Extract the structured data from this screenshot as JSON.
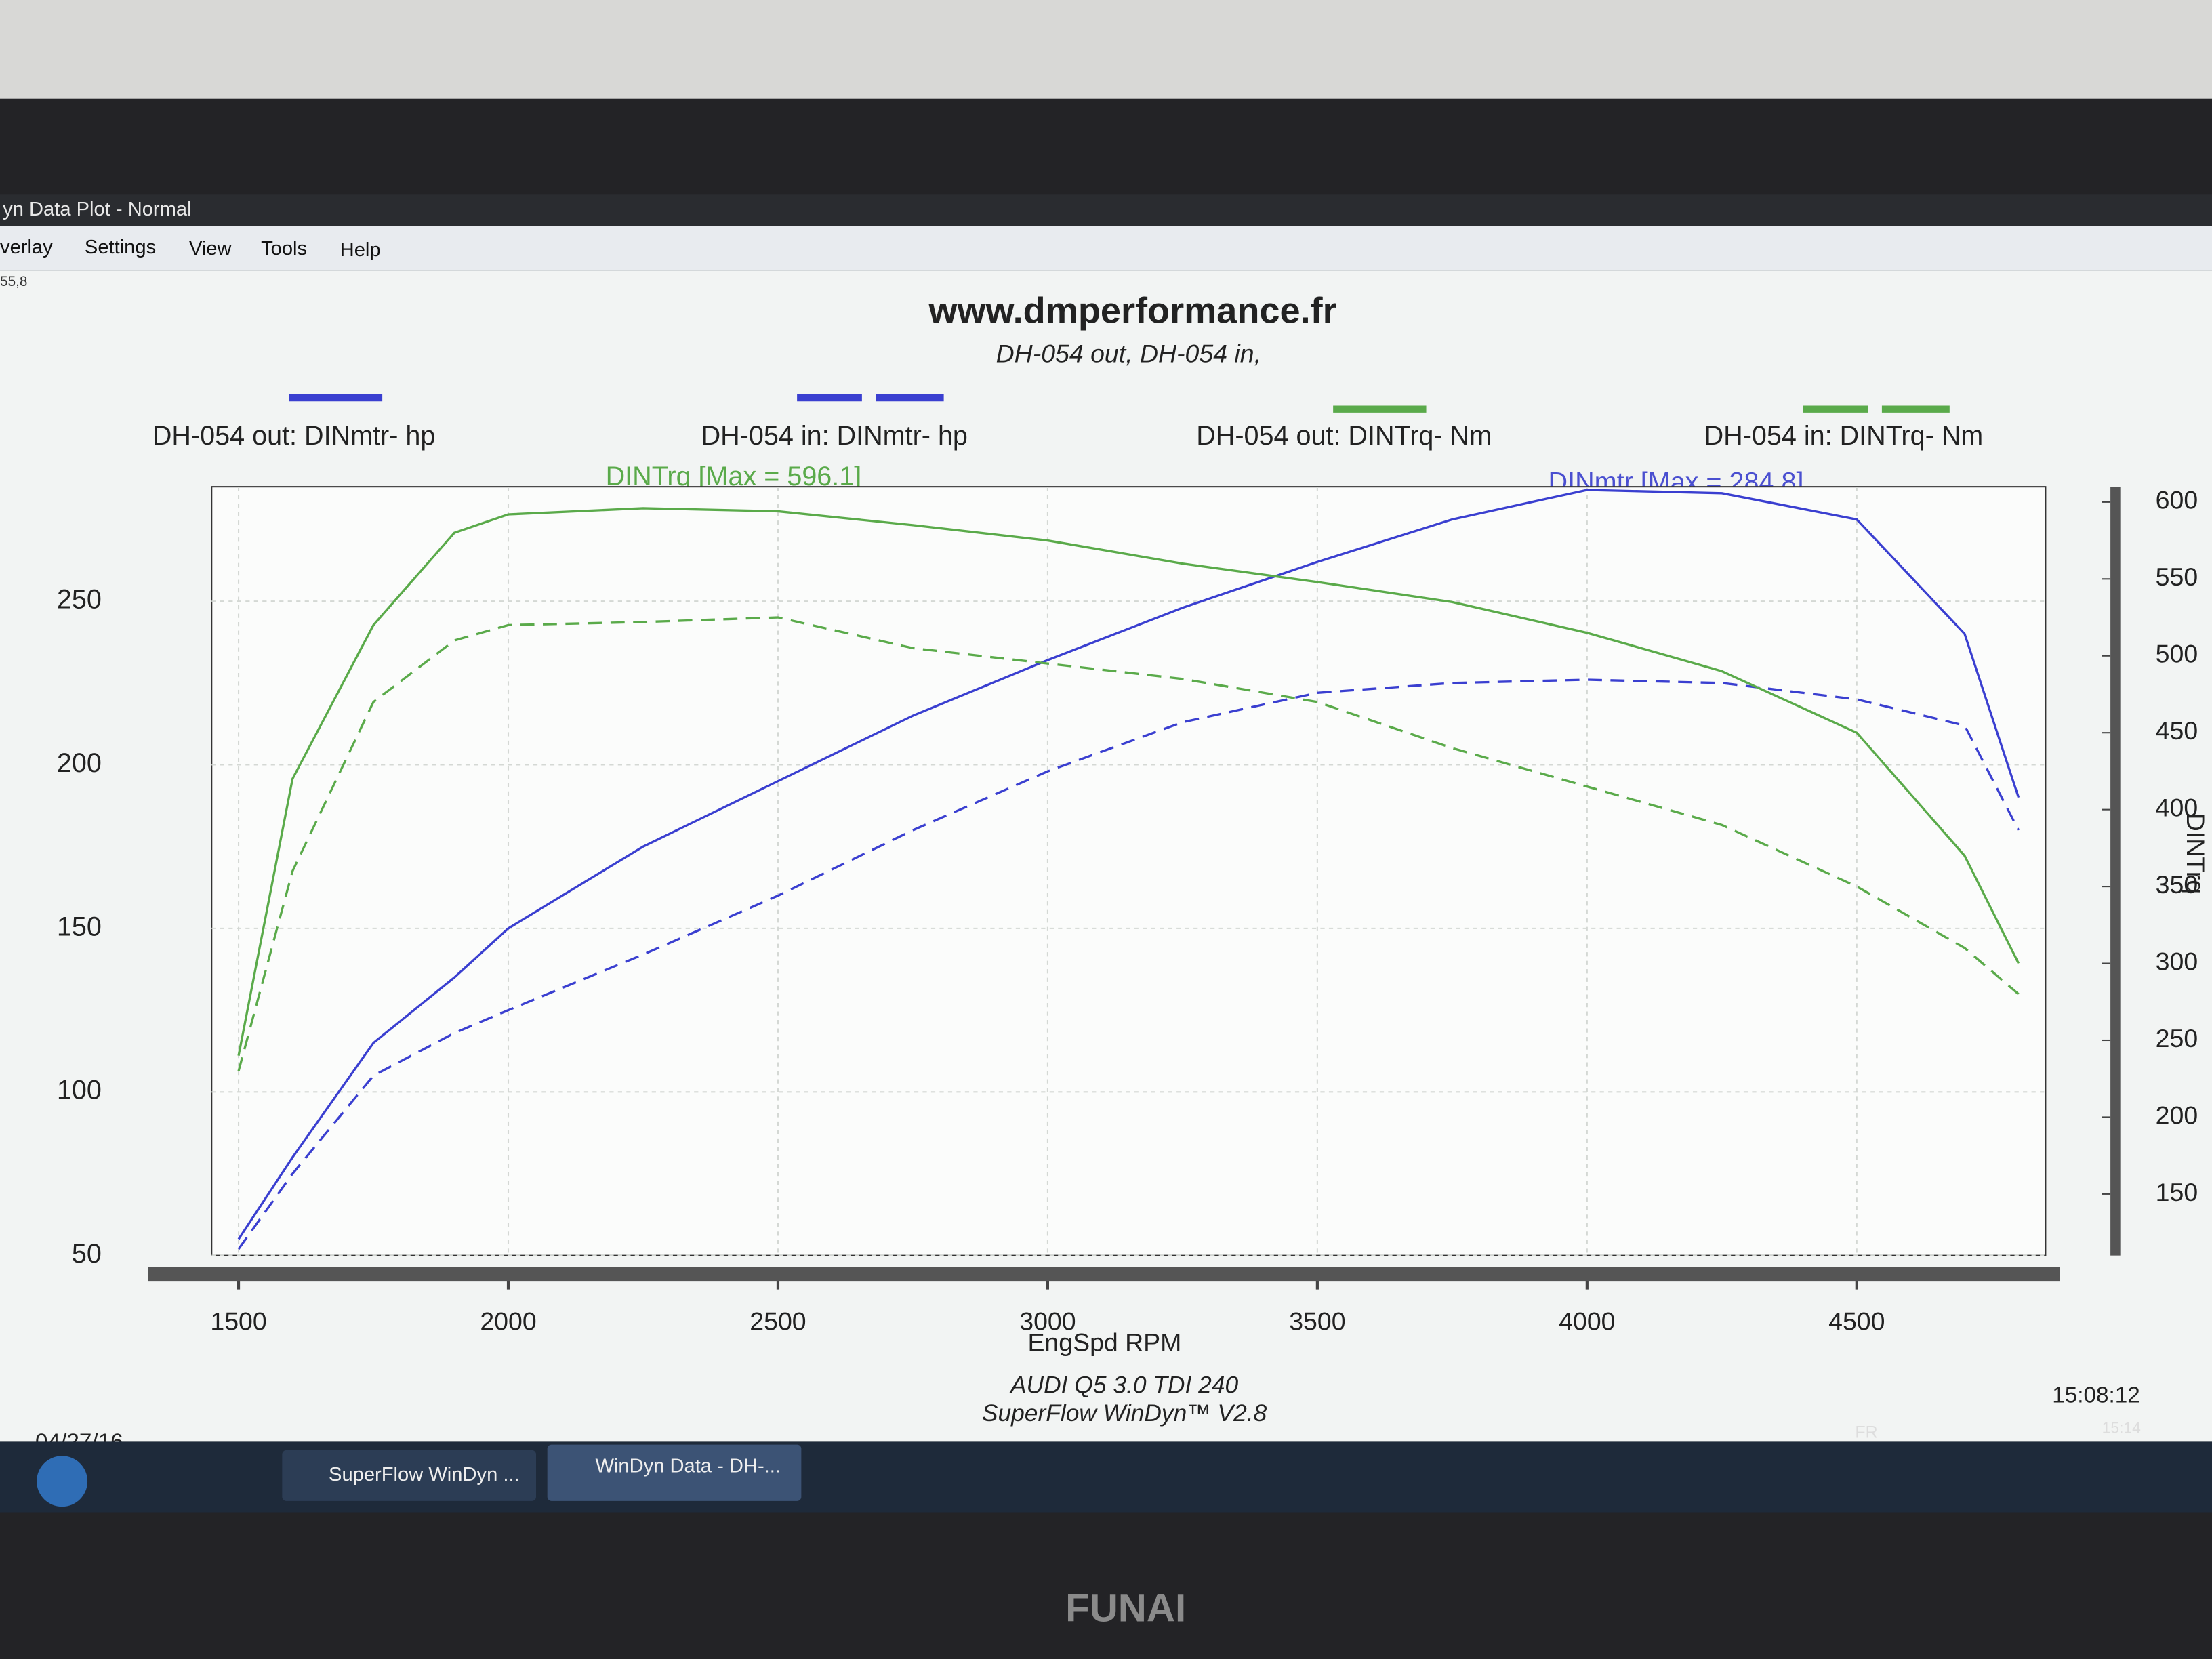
{
  "window": {
    "title": "yn Data Plot - Normal",
    "menu": [
      "verlay",
      "Settings",
      "View",
      "Tools",
      "Help"
    ],
    "status": "55,8"
  },
  "chart_data": {
    "type": "line",
    "title": "www.dmperformance.fr",
    "subtitle": "DH-054 out, DH-054 in,",
    "x_label": "EngSpd  RPM",
    "y2_label": "DINTrq",
    "annotations": [
      "DINTrq [Max = 596.1]",
      "DINmtr [Max = 284.8]"
    ],
    "footer": [
      "AUDI Q5 3.0 TDI 240",
      "SuperFlow WinDyn™  V2.8"
    ],
    "time": "15:08:12",
    "date": "04/27/16",
    "x": [
      1500,
      1600,
      1750,
      1900,
      2000,
      2250,
      2500,
      2750,
      3000,
      3250,
      3500,
      3750,
      4000,
      4250,
      4500,
      4700,
      4800
    ],
    "xlim": [
      1450,
      4850
    ],
    "xticks": [
      1500,
      2000,
      2500,
      3000,
      3500,
      4000,
      4500
    ],
    "ylim": [
      50,
      285
    ],
    "yticks": [
      50,
      100,
      150,
      200,
      250
    ],
    "y2lim": [
      110,
      610
    ],
    "y2ticks": [
      150,
      200,
      250,
      300,
      350,
      400,
      450,
      500,
      550,
      600
    ],
    "grid": true,
    "series": [
      {
        "name": "DH-054 out: DINmtr-  hp",
        "color": "#3a3fd0",
        "dashed": false,
        "values": [
          55,
          80,
          115,
          135,
          150,
          175,
          195,
          215,
          232,
          248,
          262,
          275,
          284,
          283,
          275,
          240,
          190
        ]
      },
      {
        "name": "DH-054 in: DINmtr-  hp",
        "color": "#3a3fd0",
        "dashed": true,
        "values": [
          52,
          75,
          105,
          118,
          125,
          142,
          160,
          180,
          198,
          213,
          222,
          225,
          226,
          225,
          220,
          212,
          180
        ]
      },
      {
        "name": "DH-054 out: DINTrq-  Nm",
        "color": "#5aaa4a",
        "dashed": false,
        "axis": "y2",
        "values": [
          240,
          420,
          520,
          580,
          592,
          596,
          594,
          585,
          575,
          560,
          548,
          535,
          515,
          490,
          450,
          370,
          300
        ]
      },
      {
        "name": "DH-054 in: DINTrq-  Nm",
        "color": "#5aaa4a",
        "dashed": true,
        "axis": "y2",
        "values": [
          230,
          360,
          470,
          510,
          520,
          522,
          525,
          505,
          495,
          485,
          470,
          440,
          415,
          390,
          350,
          310,
          280
        ]
      }
    ]
  },
  "taskbar": {
    "buttons": [
      "SuperFlow WinDyn ...",
      "WinDyn Data - DH-..."
    ],
    "lang": "FR",
    "clock": "15:14"
  },
  "monitor": {
    "brand": "FUNAI"
  }
}
